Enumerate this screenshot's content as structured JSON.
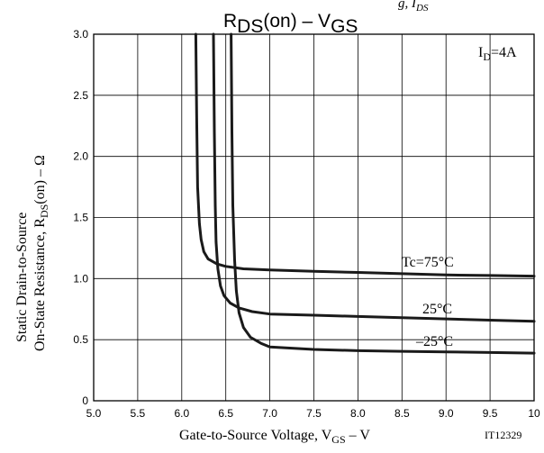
{
  "chart_data": {
    "type": "line",
    "title": "R",
    "title_sub": "DS",
    "title_rest": "(on)  –  V",
    "title_sub2": "GS",
    "top_cut_text": "g, I",
    "top_cut_sub": "DS",
    "xlabel": "Gate-to-Source Voltage, V",
    "xlabel_sub": "GS",
    "xlabel_rest": "  –  V",
    "ylabel_line1": "Static Drain-to-Source",
    "ylabel_line2": "On-State Resistance, R",
    "ylabel_line2_sub": "DS",
    "ylabel_line2_rest": "(on)  –  Ω",
    "condition": "I",
    "condition_sub": "D",
    "condition_rest": "=4A",
    "figure_id": "IT12329",
    "xlim": [
      5.0,
      10.0
    ],
    "ylim": [
      0,
      3.0
    ],
    "x_ticks": [
      "5.0",
      "5.5",
      "6.0",
      "6.5",
      "7.0",
      "7.5",
      "8.0",
      "8.5",
      "9.0",
      "9.5",
      "10"
    ],
    "y_ticks": [
      "0",
      "0.5",
      "1.0",
      "1.5",
      "2.0",
      "2.5",
      "3.0"
    ],
    "grid": true,
    "series": [
      {
        "name": "Tc=75°C",
        "x": [
          6.16,
          6.17,
          6.18,
          6.2,
          6.22,
          6.25,
          6.3,
          6.4,
          6.5,
          6.7,
          7.0,
          7.5,
          8.0,
          8.5,
          9.0,
          9.5,
          10.0
        ],
        "y": [
          3.0,
          2.3,
          1.75,
          1.45,
          1.32,
          1.22,
          1.16,
          1.12,
          1.1,
          1.08,
          1.07,
          1.06,
          1.05,
          1.04,
          1.03,
          1.025,
          1.02
        ]
      },
      {
        "name": "25°C",
        "x": [
          6.36,
          6.37,
          6.38,
          6.39,
          6.41,
          6.44,
          6.48,
          6.55,
          6.65,
          6.8,
          7.0,
          7.5,
          8.0,
          8.5,
          9.0,
          9.5,
          10.0
        ],
        "y": [
          3.0,
          2.2,
          1.6,
          1.3,
          1.08,
          0.94,
          0.86,
          0.8,
          0.76,
          0.73,
          0.71,
          0.7,
          0.69,
          0.68,
          0.67,
          0.66,
          0.65
        ]
      },
      {
        "name": "–25°C",
        "x": [
          6.56,
          6.57,
          6.58,
          6.6,
          6.62,
          6.65,
          6.7,
          6.78,
          6.9,
          7.0,
          7.5,
          8.0,
          8.5,
          9.0,
          9.5,
          10.0
        ],
        "y": [
          3.0,
          2.2,
          1.6,
          1.15,
          0.9,
          0.72,
          0.6,
          0.52,
          0.47,
          0.44,
          0.42,
          0.41,
          0.405,
          0.4,
          0.395,
          0.39
        ]
      }
    ]
  }
}
